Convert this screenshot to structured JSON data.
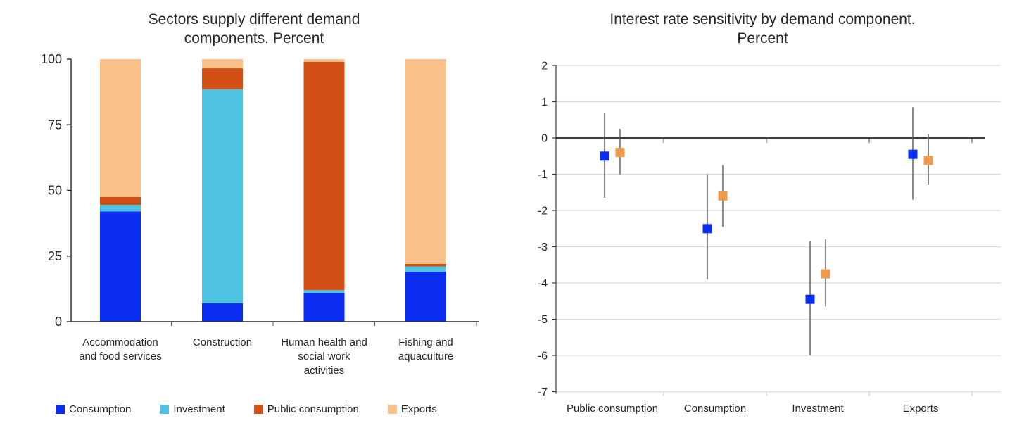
{
  "page": {
    "background_color": "#FFFFFF",
    "text_color": "#262626"
  },
  "left_chart": {
    "title_line1": "Sectors supply different demand",
    "title_line2": "components. Percent"
  },
  "right_chart": {
    "title_line1": "Interest rate sensitivity by demand component.",
    "title_line2": "Percent"
  },
  "chart_data": [
    {
      "type": "bar",
      "stacked": true,
      "title": "Sectors supply different demand components. Percent",
      "categories": [
        "Accommodation and food services",
        "Construction",
        "Human health and social work activities",
        "Fishing and aquaculture"
      ],
      "category_label_lines": [
        [
          "Accommodation",
          "and food services"
        ],
        [
          "Construction"
        ],
        [
          "Human health and",
          "social work",
          "activities"
        ],
        [
          "Fishing and",
          "aquaculture"
        ]
      ],
      "series": [
        {
          "name": "Consumption",
          "color": "#0A2DF0",
          "values": [
            42,
            7,
            11,
            19
          ]
        },
        {
          "name": "Investment",
          "color": "#4EC3E2",
          "values": [
            2.5,
            81.5,
            1,
            2
          ]
        },
        {
          "name": "Public consumption",
          "color": "#D25016",
          "values": [
            3,
            8,
            87,
            1
          ]
        },
        {
          "name": "Exports",
          "color": "#FAC189",
          "values": [
            52.5,
            3.5,
            1,
            78
          ]
        }
      ],
      "ylim": [
        0,
        100
      ],
      "yticks": [
        0,
        25,
        50,
        75,
        100
      ],
      "grid": false,
      "legend_position": "bottom",
      "axis_color": "#262626"
    },
    {
      "type": "scatter",
      "subtype": "error-bar-dot-plot",
      "title": "Interest rate sensitivity by demand component. Percent",
      "categories": [
        "Public consumption",
        "Consumption",
        "Investment",
        "Exports"
      ],
      "ylim": [
        -7,
        2
      ],
      "yticks": [
        2,
        1,
        0,
        -1,
        -2,
        -3,
        -4,
        -5,
        -6,
        -7
      ],
      "grid": true,
      "grid_color": "#DCDCDC",
      "zero_line_color": "#000000",
      "error_bar_color": "#595959",
      "series": [
        {
          "name": "blue",
          "marker": "square",
          "color": "#0A2DF0",
          "values": [
            -0.5,
            -2.5,
            -4.45,
            -0.45
          ],
          "ci_high": [
            0.7,
            -1.0,
            -2.85,
            0.85
          ],
          "ci_low": [
            -1.65,
            -3.9,
            -6.0,
            -1.7
          ]
        },
        {
          "name": "orange",
          "marker": "square",
          "color": "#EE9B4D",
          "values": [
            -0.4,
            -1.6,
            -3.75,
            -0.62
          ],
          "ci_high": [
            0.25,
            -0.75,
            -2.8,
            0.1
          ],
          "ci_low": [
            -1.0,
            -2.45,
            -4.65,
            -1.3
          ]
        }
      ]
    }
  ]
}
